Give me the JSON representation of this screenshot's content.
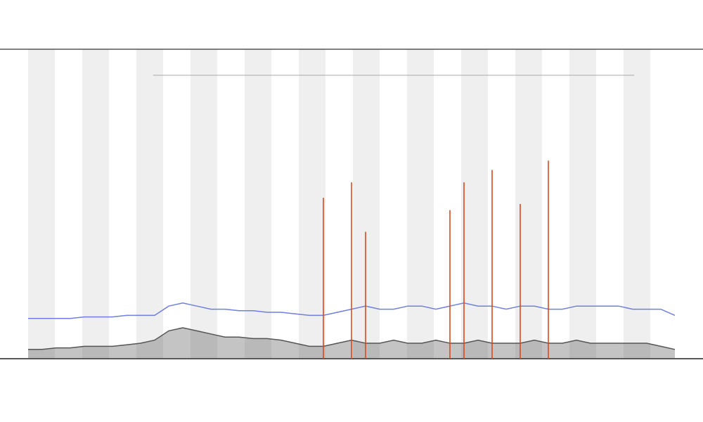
{
  "chart_data": {
    "type": "line",
    "ylim": [
      0,
      100
    ],
    "series": [
      {
        "color": "#555555",
        "values": [
          3,
          3,
          3.5,
          3.5,
          4,
          4,
          4,
          4.5,
          5,
          6,
          9,
          10,
          9,
          8,
          7,
          7,
          6.5,
          6.5,
          6,
          5,
          4,
          4,
          5,
          6,
          5,
          5,
          6,
          5,
          5,
          6,
          5,
          5,
          6,
          5,
          5,
          5,
          6,
          5,
          5,
          6,
          5,
          5,
          5,
          5,
          5,
          4,
          3
        ]
      },
      {
        "color": "#6f7fe0",
        "values": [
          13,
          13,
          13,
          13,
          13.5,
          13.5,
          13.5,
          14,
          14,
          14,
          17,
          18,
          17,
          16,
          16,
          15.5,
          15.5,
          15,
          15,
          14.5,
          14,
          14,
          15,
          16,
          17,
          16,
          16,
          17,
          17,
          16,
          17,
          18,
          17,
          17,
          16,
          17,
          17,
          16,
          16,
          17,
          17,
          17,
          17,
          16,
          16,
          16,
          14
        ]
      },
      {
        "color": "#d84a20",
        "style": "spike",
        "values": [
          null,
          null,
          null,
          null,
          null,
          null,
          null,
          null,
          null,
          null,
          null,
          null,
          null,
          null,
          null,
          null,
          null,
          null,
          null,
          null,
          null,
          52,
          null,
          57,
          41,
          null,
          null,
          null,
          null,
          null,
          48,
          57,
          null,
          61,
          null,
          50,
          null,
          64,
          null,
          null,
          null,
          null,
          null,
          null,
          null,
          null,
          null
        ]
      }
    ]
  }
}
